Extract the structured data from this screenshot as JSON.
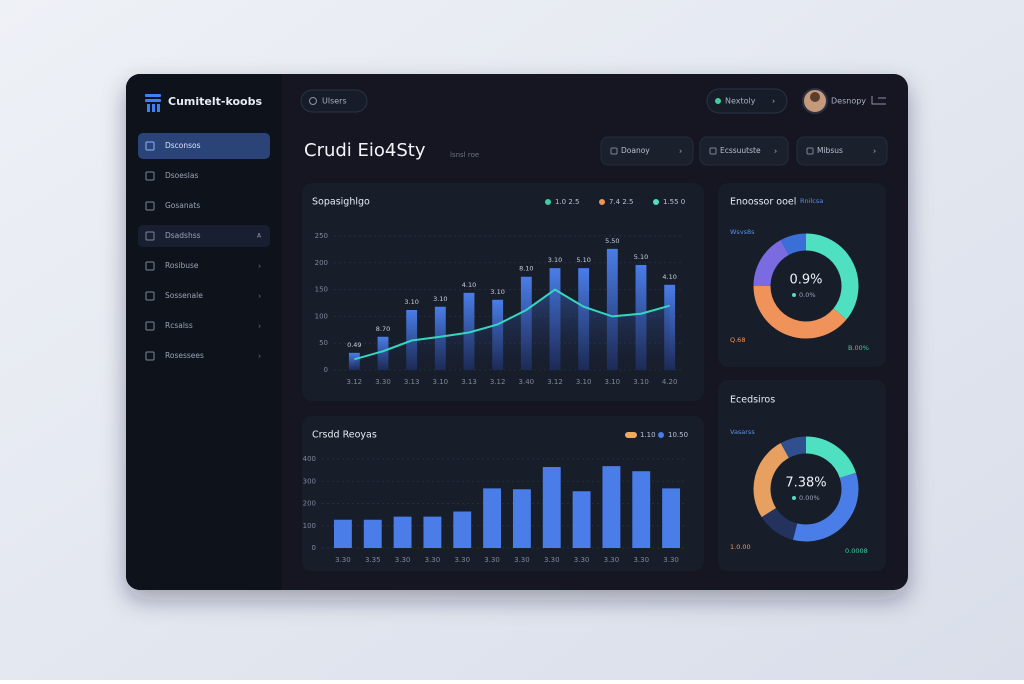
{
  "sidebar": {
    "logo": "Cumitelt-koobs",
    "badge": "A",
    "nav": [
      "Dsconsos",
      "Dsoeslas",
      "Gosanats",
      "Dsadshss",
      "Rosibuse",
      "Sossenale",
      "Rcsalss",
      "Rosessees"
    ]
  },
  "topbar": {
    "search": "Ulsers",
    "filter": "Nextoly",
    "user": "Desnopy"
  },
  "header": {
    "title": "Crudi Eio4Sty",
    "subtitle": "lsnsl roe"
  },
  "dropdowns": [
    "Doanoy",
    "Ecssuutste",
    "Mibsus"
  ],
  "charts": [
    {
      "type": "bar",
      "title": "Sopasighlgo",
      "legend": [
        {
          "name": "1.0 2.5",
          "color": "#3ecf9f"
        },
        {
          "name": "7.4 2.5",
          "color": "#f0935b"
        },
        {
          "name": "1.55 0",
          "color": "#4ee0c0"
        }
      ],
      "categories": [
        "3.12",
        "3.30",
        "3.13",
        "3.10",
        "3.13",
        "3.12",
        "3.40",
        "3.12",
        "3.10",
        "3.10",
        "3.10",
        "4.20"
      ],
      "series": [
        {
          "type": "bar",
          "color": "#4a7de8",
          "values": [
            32,
            62,
            112,
            118,
            144,
            131,
            174,
            190,
            190,
            226,
            196,
            159
          ]
        },
        {
          "type": "line",
          "color": "#35d6c0",
          "values": [
            20,
            35,
            55,
            62,
            70,
            85,
            112,
            150,
            118,
            100,
            105,
            120
          ]
        }
      ],
      "annotations": [
        "0.49",
        "8.70",
        "3.10",
        "3.10",
        "4.10",
        "3.10",
        "8.10",
        "3.10",
        "5.10",
        "5.50",
        "5.10",
        "4.10"
      ],
      "ylim": [
        0,
        250
      ],
      "yticks": [
        0,
        50,
        100,
        150,
        200,
        250
      ],
      "grid": true
    },
    {
      "type": "bar",
      "title": "Crsdd Reoyas",
      "legend": [
        {
          "name": "1.10",
          "color": "#f0a860"
        },
        {
          "name": "10.50",
          "color": "#4a7de8"
        }
      ],
      "categories": [
        "3.30",
        "3.35",
        "3.30",
        "3.30",
        "3.30",
        "3.30",
        "3.30",
        "3.30",
        "3.30",
        "3.30",
        "3.30",
        "3.30"
      ],
      "series": [
        {
          "type": "bar",
          "color": "#4a7de8",
          "values": [
            127,
            127,
            141,
            141,
            164,
            268,
            264,
            364,
            255,
            368,
            345,
            268
          ]
        }
      ],
      "ylim": [
        0,
        400
      ],
      "yticks": [
        0,
        100,
        200,
        300,
        400
      ],
      "grid": true
    },
    {
      "type": "donut",
      "title": "Enoossor ooel",
      "subtitle": "Rnilcsa",
      "values": [
        36,
        39,
        17,
        8
      ],
      "colors": [
        "#4ee0c0",
        "#f0935b",
        "#7b6be0",
        "#3a6fd8"
      ],
      "center_label": "0.9%",
      "center_sub": "0.0%",
      "annotations": [
        "Wsvs8s",
        "Q.68",
        "B.00%"
      ]
    },
    {
      "type": "donut",
      "title": "Ecedsiros",
      "values": [
        20,
        34,
        12,
        26,
        8
      ],
      "colors": [
        "#4ee0c0",
        "#4a7de8",
        "#24335e",
        "#e8a060",
        "#2f4f8f"
      ],
      "center_label": "7.38%",
      "center_sub": "0.00%",
      "annotations": [
        "Vasarss",
        "1.0.00",
        "0.0008"
      ]
    }
  ]
}
